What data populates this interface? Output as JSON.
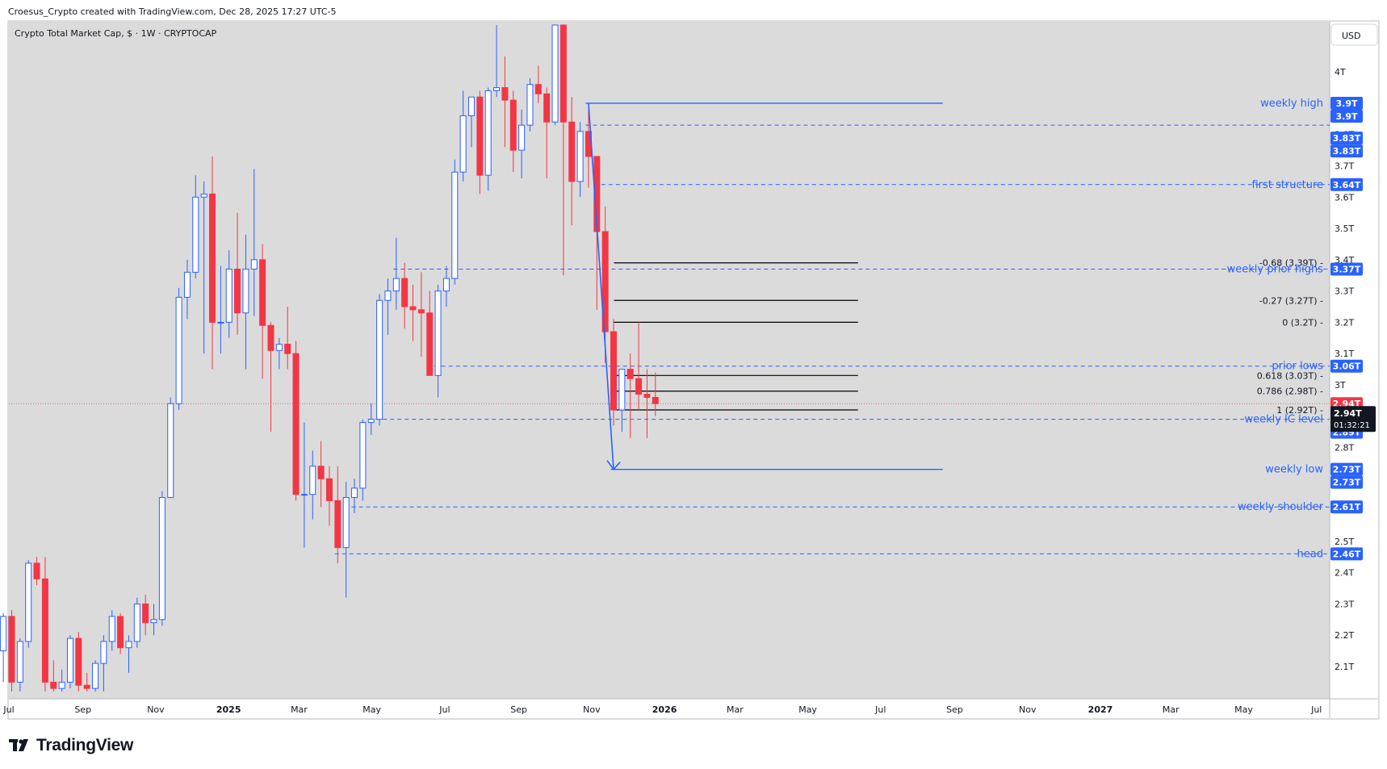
{
  "header": {
    "caption": "Croesus_Crypto created with TradingView.com, Dec 28, 2025 17:27 UTC-5"
  },
  "symbol": {
    "title": "Crypto Total Market Cap, $ · 1W · CRYPTOCAP"
  },
  "currency_button": {
    "label": "USD"
  },
  "footer": {
    "brand": "TradingView"
  },
  "colors": {
    "background": "#dbdbdb",
    "up": "#2962ff",
    "down": "#f23645",
    "level_line": "#2962ff",
    "fib_line": "#000000",
    "current_price": "#131722",
    "last_close": "#f23645"
  },
  "chart_data": {
    "type": "candlestick",
    "y_axis": {
      "min": 2.02,
      "max": 4.15,
      "ticks": [
        {
          "v": 4.0,
          "label": "4T"
        },
        {
          "v": 3.8,
          "label": "3.8T"
        },
        {
          "v": 3.7,
          "label": "3.7T"
        },
        {
          "v": 3.6,
          "label": "3.6T"
        },
        {
          "v": 3.5,
          "label": "3.5T"
        },
        {
          "v": 3.4,
          "label": "3.4T"
        },
        {
          "v": 3.3,
          "label": "3.3T"
        },
        {
          "v": 3.2,
          "label": "3.2T"
        },
        {
          "v": 3.1,
          "label": "3.1T"
        },
        {
          "v": 3.0,
          "label": "3T"
        },
        {
          "v": 2.8,
          "label": "2.8T"
        },
        {
          "v": 2.5,
          "label": "2.5T"
        },
        {
          "v": 2.4,
          "label": "2.4T"
        },
        {
          "v": 2.3,
          "label": "2.3T"
        },
        {
          "v": 2.2,
          "label": "2.2T"
        },
        {
          "v": 2.1,
          "label": "2.1T"
        }
      ]
    },
    "x_axis": {
      "start": "2024-07-01",
      "end": "2027-07-12",
      "ticks": [
        {
          "date": "2024-07-01",
          "label": "Jul",
          "bold": false
        },
        {
          "date": "2024-09-01",
          "label": "Sep",
          "bold": false
        },
        {
          "date": "2024-11-01",
          "label": "Nov",
          "bold": false
        },
        {
          "date": "2025-01-01",
          "label": "2025",
          "bold": true
        },
        {
          "date": "2025-03-01",
          "label": "Mar",
          "bold": false
        },
        {
          "date": "2025-05-01",
          "label": "May",
          "bold": false
        },
        {
          "date": "2025-07-01",
          "label": "Jul",
          "bold": false
        },
        {
          "date": "2025-09-01",
          "label": "Sep",
          "bold": false
        },
        {
          "date": "2025-11-01",
          "label": "Nov",
          "bold": false
        },
        {
          "date": "2026-01-01",
          "label": "2026",
          "bold": true
        },
        {
          "date": "2026-03-01",
          "label": "Mar",
          "bold": false
        },
        {
          "date": "2026-05-01",
          "label": "May",
          "bold": false
        },
        {
          "date": "2026-07-01",
          "label": "Jul",
          "bold": false
        },
        {
          "date": "2026-09-01",
          "label": "Sep",
          "bold": false
        },
        {
          "date": "2026-11-01",
          "label": "Nov",
          "bold": false
        },
        {
          "date": "2027-01-01",
          "label": "2027",
          "bold": true
        },
        {
          "date": "2027-03-01",
          "label": "Mar",
          "bold": false
        },
        {
          "date": "2027-05-01",
          "label": "May",
          "bold": false
        },
        {
          "date": "2027-07-01",
          "label": "Jul",
          "bold": false
        }
      ]
    },
    "candles": [
      {
        "d": "2024-06-24",
        "o": 2.15,
        "h": 2.27,
        "l": 2.05,
        "c": 2.26
      },
      {
        "d": "2024-07-01",
        "o": 2.26,
        "h": 2.28,
        "l": 2.02,
        "c": 2.05
      },
      {
        "d": "2024-07-08",
        "o": 2.05,
        "h": 2.19,
        "l": 2.02,
        "c": 2.18
      },
      {
        "d": "2024-07-15",
        "o": 2.18,
        "h": 2.44,
        "l": 2.16,
        "c": 2.43
      },
      {
        "d": "2024-07-22",
        "o": 2.43,
        "h": 2.45,
        "l": 2.36,
        "c": 2.38
      },
      {
        "d": "2024-07-29",
        "o": 2.38,
        "h": 2.45,
        "l": 2.02,
        "c": 2.05
      },
      {
        "d": "2024-08-05",
        "o": 2.05,
        "h": 2.12,
        "l": 2.02,
        "c": 2.03
      },
      {
        "d": "2024-08-12",
        "o": 2.03,
        "h": 2.09,
        "l": 2.02,
        "c": 2.05
      },
      {
        "d": "2024-08-19",
        "o": 2.05,
        "h": 2.2,
        "l": 2.03,
        "c": 2.19
      },
      {
        "d": "2024-08-26",
        "o": 2.19,
        "h": 2.21,
        "l": 2.02,
        "c": 2.04
      },
      {
        "d": "2024-09-02",
        "o": 2.04,
        "h": 2.08,
        "l": 2.02,
        "c": 2.03
      },
      {
        "d": "2024-09-09",
        "o": 2.03,
        "h": 2.12,
        "l": 2.02,
        "c": 2.11
      },
      {
        "d": "2024-09-16",
        "o": 2.11,
        "h": 2.2,
        "l": 2.02,
        "c": 2.18
      },
      {
        "d": "2024-09-23",
        "o": 2.18,
        "h": 2.28,
        "l": 2.15,
        "c": 2.26
      },
      {
        "d": "2024-09-30",
        "o": 2.26,
        "h": 2.27,
        "l": 2.14,
        "c": 2.16
      },
      {
        "d": "2024-10-07",
        "o": 2.16,
        "h": 2.2,
        "l": 2.08,
        "c": 2.18
      },
      {
        "d": "2024-10-14",
        "o": 2.18,
        "h": 2.32,
        "l": 2.16,
        "c": 2.3
      },
      {
        "d": "2024-10-21",
        "o": 2.3,
        "h": 2.33,
        "l": 2.2,
        "c": 2.24
      },
      {
        "d": "2024-10-28",
        "o": 2.24,
        "h": 2.3,
        "l": 2.2,
        "c": 2.25
      },
      {
        "d": "2024-11-04",
        "o": 2.25,
        "h": 2.66,
        "l": 2.23,
        "c": 2.64
      },
      {
        "d": "2024-11-11",
        "o": 2.64,
        "h": 2.96,
        "l": 2.64,
        "c": 2.94
      },
      {
        "d": "2024-11-18",
        "o": 2.94,
        "h": 3.31,
        "l": 2.92,
        "c": 3.28
      },
      {
        "d": "2024-11-25",
        "o": 3.28,
        "h": 3.4,
        "l": 3.21,
        "c": 3.36
      },
      {
        "d": "2024-12-02",
        "o": 3.36,
        "h": 3.67,
        "l": 3.34,
        "c": 3.6
      },
      {
        "d": "2024-12-09",
        "o": 3.6,
        "h": 3.65,
        "l": 3.1,
        "c": 3.61
      },
      {
        "d": "2024-12-16",
        "o": 3.61,
        "h": 3.73,
        "l": 3.05,
        "c": 3.2
      },
      {
        "d": "2024-12-23",
        "o": 3.2,
        "h": 3.38,
        "l": 3.1,
        "c": 3.2
      },
      {
        "d": "2024-12-30",
        "o": 3.2,
        "h": 3.43,
        "l": 3.15,
        "c": 3.37
      },
      {
        "d": "2025-01-06",
        "o": 3.37,
        "h": 3.55,
        "l": 3.16,
        "c": 3.23
      },
      {
        "d": "2025-01-13",
        "o": 3.23,
        "h": 3.48,
        "l": 3.05,
        "c": 3.37
      },
      {
        "d": "2025-01-20",
        "o": 3.37,
        "h": 3.69,
        "l": 3.22,
        "c": 3.4
      },
      {
        "d": "2025-01-27",
        "o": 3.4,
        "h": 3.45,
        "l": 3.02,
        "c": 3.19
      },
      {
        "d": "2025-02-03",
        "o": 3.19,
        "h": 3.2,
        "l": 2.85,
        "c": 3.11
      },
      {
        "d": "2025-02-10",
        "o": 3.11,
        "h": 3.15,
        "l": 3.05,
        "c": 3.13
      },
      {
        "d": "2025-02-17",
        "o": 3.13,
        "h": 3.25,
        "l": 3.05,
        "c": 3.1
      },
      {
        "d": "2025-02-24",
        "o": 3.1,
        "h": 3.14,
        "l": 2.63,
        "c": 2.65
      },
      {
        "d": "2025-03-03",
        "o": 2.65,
        "h": 2.88,
        "l": 2.48,
        "c": 2.65
      },
      {
        "d": "2025-03-10",
        "o": 2.65,
        "h": 2.79,
        "l": 2.57,
        "c": 2.74
      },
      {
        "d": "2025-03-17",
        "o": 2.74,
        "h": 2.82,
        "l": 2.61,
        "c": 2.7
      },
      {
        "d": "2025-03-24",
        "o": 2.7,
        "h": 2.74,
        "l": 2.55,
        "c": 2.63
      },
      {
        "d": "2025-03-31",
        "o": 2.63,
        "h": 2.74,
        "l": 2.43,
        "c": 2.48
      },
      {
        "d": "2025-04-07",
        "o": 2.48,
        "h": 2.69,
        "l": 2.32,
        "c": 2.64
      },
      {
        "d": "2025-04-14",
        "o": 2.64,
        "h": 2.7,
        "l": 2.59,
        "c": 2.67
      },
      {
        "d": "2025-04-21",
        "o": 2.67,
        "h": 2.89,
        "l": 2.63,
        "c": 2.88
      },
      {
        "d": "2025-04-28",
        "o": 2.88,
        "h": 2.94,
        "l": 2.84,
        "c": 2.89
      },
      {
        "d": "2025-05-05",
        "o": 2.89,
        "h": 3.29,
        "l": 2.87,
        "c": 3.27
      },
      {
        "d": "2025-05-12",
        "o": 3.27,
        "h": 3.34,
        "l": 3.16,
        "c": 3.3
      },
      {
        "d": "2025-05-19",
        "o": 3.3,
        "h": 3.47,
        "l": 3.24,
        "c": 3.34
      },
      {
        "d": "2025-05-26",
        "o": 3.34,
        "h": 3.39,
        "l": 3.18,
        "c": 3.25
      },
      {
        "d": "2025-06-02",
        "o": 3.25,
        "h": 3.32,
        "l": 3.14,
        "c": 3.24
      },
      {
        "d": "2025-06-09",
        "o": 3.24,
        "h": 3.36,
        "l": 3.09,
        "c": 3.23
      },
      {
        "d": "2025-06-16",
        "o": 3.23,
        "h": 3.3,
        "l": 3.03,
        "c": 3.03
      },
      {
        "d": "2025-06-23",
        "o": 3.03,
        "h": 3.32,
        "l": 2.96,
        "c": 3.3
      },
      {
        "d": "2025-06-30",
        "o": 3.3,
        "h": 3.38,
        "l": 3.25,
        "c": 3.34
      },
      {
        "d": "2025-07-07",
        "o": 3.34,
        "h": 3.72,
        "l": 3.32,
        "c": 3.68
      },
      {
        "d": "2025-07-14",
        "o": 3.68,
        "h": 3.94,
        "l": 3.65,
        "c": 3.86
      },
      {
        "d": "2025-07-21",
        "o": 3.86,
        "h": 3.92,
        "l": 3.76,
        "c": 3.92
      },
      {
        "d": "2025-07-28",
        "o": 3.92,
        "h": 3.94,
        "l": 3.61,
        "c": 3.67
      },
      {
        "d": "2025-08-04",
        "o": 3.67,
        "h": 3.95,
        "l": 3.62,
        "c": 3.94
      },
      {
        "d": "2025-08-11",
        "o": 3.94,
        "h": 4.15,
        "l": 3.92,
        "c": 3.95
      },
      {
        "d": "2025-08-18",
        "o": 3.95,
        "h": 4.05,
        "l": 3.76,
        "c": 3.91
      },
      {
        "d": "2025-08-25",
        "o": 3.91,
        "h": 3.94,
        "l": 3.68,
        "c": 3.75
      },
      {
        "d": "2025-09-01",
        "o": 3.75,
        "h": 3.88,
        "l": 3.66,
        "c": 3.83
      },
      {
        "d": "2025-09-08",
        "o": 3.83,
        "h": 3.98,
        "l": 3.81,
        "c": 3.96
      },
      {
        "d": "2025-09-15",
        "o": 3.96,
        "h": 4.02,
        "l": 3.9,
        "c": 3.93
      },
      {
        "d": "2025-09-22",
        "o": 3.93,
        "h": 3.95,
        "l": 3.66,
        "c": 3.84
      },
      {
        "d": "2025-09-29",
        "o": 3.84,
        "h": 4.15,
        "l": 3.83,
        "c": 4.15
      },
      {
        "d": "2025-10-06",
        "o": 4.15,
        "h": 4.15,
        "l": 3.35,
        "c": 3.84
      },
      {
        "d": "2025-10-13",
        "o": 3.84,
        "h": 3.92,
        "l": 3.51,
        "c": 3.65
      },
      {
        "d": "2025-10-20",
        "o": 3.65,
        "h": 3.84,
        "l": 3.6,
        "c": 3.81
      },
      {
        "d": "2025-10-27",
        "o": 3.81,
        "h": 3.88,
        "l": 3.63,
        "c": 3.73
      },
      {
        "d": "2025-11-03",
        "o": 3.73,
        "h": 3.73,
        "l": 3.24,
        "c": 3.49
      },
      {
        "d": "2025-11-10",
        "o": 3.49,
        "h": 3.57,
        "l": 3.07,
        "c": 3.17
      },
      {
        "d": "2025-11-17",
        "o": 3.17,
        "h": 3.21,
        "l": 2.87,
        "c": 2.92
      },
      {
        "d": "2025-11-24",
        "o": 2.92,
        "h": 3.05,
        "l": 2.85,
        "c": 3.05
      },
      {
        "d": "2025-12-01",
        "o": 3.05,
        "h": 3.1,
        "l": 2.83,
        "c": 3.02
      },
      {
        "d": "2025-12-08",
        "o": 3.02,
        "h": 3.2,
        "l": 2.92,
        "c": 2.97
      },
      {
        "d": "2025-12-15",
        "o": 2.97,
        "h": 3.05,
        "l": 2.83,
        "c": 2.96
      },
      {
        "d": "2025-12-22",
        "o": 2.96,
        "h": 3.04,
        "l": 2.9,
        "c": 2.94
      }
    ],
    "levels": [
      {
        "label": "weekly high",
        "price": 3.9,
        "style": "solid",
        "start": "2025-10-27",
        "end": "2026-08-22"
      },
      {
        "label": "",
        "price": 3.83,
        "style": "dashed",
        "start": "2025-10-27",
        "end": "2027-07-12"
      },
      {
        "label": "first structure",
        "price": 3.64,
        "style": "dashed",
        "start": "2025-11-03",
        "end": "2027-07-12"
      },
      {
        "label": "weekly prior highs",
        "price": 3.37,
        "style": "dashed",
        "start": "2025-05-19",
        "end": "2027-07-12"
      },
      {
        "label": "prior lows",
        "price": 3.06,
        "style": "dashed",
        "start": "2025-06-16",
        "end": "2027-07-12"
      },
      {
        "label": "weekly IC level",
        "price": 2.89,
        "style": "dashed",
        "start": "2025-04-28",
        "end": "2027-07-12"
      },
      {
        "label": "weekly low",
        "price": 2.73,
        "style": "solid",
        "start": "2025-11-17",
        "end": "2026-08-22"
      },
      {
        "label": "weekly shoulder",
        "price": 2.61,
        "style": "dashed",
        "start": "2025-04-14",
        "end": "2027-07-12"
      },
      {
        "label": "head",
        "price": 2.46,
        "style": "dashed",
        "start": "2025-03-31",
        "end": "2027-07-12"
      }
    ],
    "fib_levels": [
      {
        "label": "-0.68 (3.39T)",
        "price": 3.39
      },
      {
        "label": "-0.27 (3.27T)",
        "price": 3.27
      },
      {
        "label": "0 (3.2T)",
        "price": 3.2
      },
      {
        "label": "0.618 (3.03T)",
        "price": 3.03
      },
      {
        "label": "0.786 (2.98T)",
        "price": 2.98
      },
      {
        "label": "1 (2.92T)",
        "price": 2.92
      }
    ],
    "fib_range": {
      "start": "2025-11-17",
      "end": "2026-08-22"
    },
    "trend_arrow": {
      "from_date": "2025-10-27",
      "from_price": 3.9,
      "to_date": "2025-11-17",
      "to_price": 2.73
    },
    "price_labels": [
      {
        "label": "3.9T",
        "price": 3.9,
        "color": "#2962ff"
      },
      {
        "label": "3.9T",
        "price": 3.9,
        "color": "#2962ff"
      },
      {
        "label": "3.83T",
        "price": 3.83,
        "color": "#2962ff"
      },
      {
        "label": "3.83T",
        "price": 3.83,
        "color": "#2962ff"
      },
      {
        "label": "3.64T",
        "price": 3.64,
        "color": "#2962ff"
      },
      {
        "label": "3.37T",
        "price": 3.37,
        "color": "#2962ff"
      },
      {
        "label": "3.06T",
        "price": 3.06,
        "color": "#2962ff"
      },
      {
        "label": "2.94T",
        "price": 2.94,
        "color": "#f23645"
      },
      {
        "label": "2.89T",
        "price": 2.89,
        "color": "#2962ff"
      },
      {
        "label": "2.89T",
        "price": 2.89,
        "color": "#2962ff"
      },
      {
        "label": "2.73T",
        "price": 2.73,
        "color": "#2962ff"
      },
      {
        "label": "2.73T",
        "price": 2.73,
        "color": "#2962ff"
      },
      {
        "label": "2.61T",
        "price": 2.61,
        "color": "#2962ff"
      },
      {
        "label": "2.46T",
        "price": 2.46,
        "color": "#2962ff"
      }
    ],
    "current_price": {
      "value": 2.94,
      "label": "2.94T",
      "countdown": "01:32:21"
    }
  }
}
